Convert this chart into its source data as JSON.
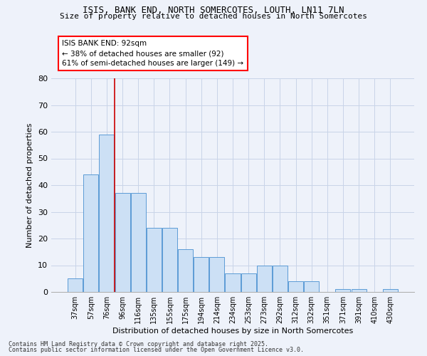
{
  "title1": "ISIS, BANK END, NORTH SOMERCOTES, LOUTH, LN11 7LN",
  "title2": "Size of property relative to detached houses in North Somercotes",
  "xlabel": "Distribution of detached houses by size in North Somercotes",
  "ylabel": "Number of detached properties",
  "categories": [
    "37sqm",
    "57sqm",
    "76sqm",
    "96sqm",
    "116sqm",
    "135sqm",
    "155sqm",
    "175sqm",
    "194sqm",
    "214sqm",
    "234sqm",
    "253sqm",
    "273sqm",
    "292sqm",
    "312sqm",
    "332sqm",
    "351sqm",
    "371sqm",
    "391sqm",
    "410sqm",
    "430sqm"
  ],
  "values": [
    5,
    44,
    59,
    37,
    37,
    24,
    24,
    16,
    13,
    13,
    7,
    7,
    10,
    10,
    4,
    4,
    0,
    1,
    1,
    0,
    1
  ],
  "bar_color": "#cce0f5",
  "bar_edge_color": "#5b9bd5",
  "grid_color": "#c8d4e8",
  "background_color": "#eef2fa",
  "annotation_text": "ISIS BANK END: 92sqm\n← 38% of detached houses are smaller (92)\n61% of semi-detached houses are larger (149) →",
  "vline_x": 2.5,
  "vline_color": "#cc0000",
  "ylim": [
    0,
    80
  ],
  "yticks": [
    0,
    10,
    20,
    30,
    40,
    50,
    60,
    70,
    80
  ],
  "footer1": "Contains HM Land Registry data © Crown copyright and database right 2025.",
  "footer2": "Contains public sector information licensed under the Open Government Licence v3.0."
}
